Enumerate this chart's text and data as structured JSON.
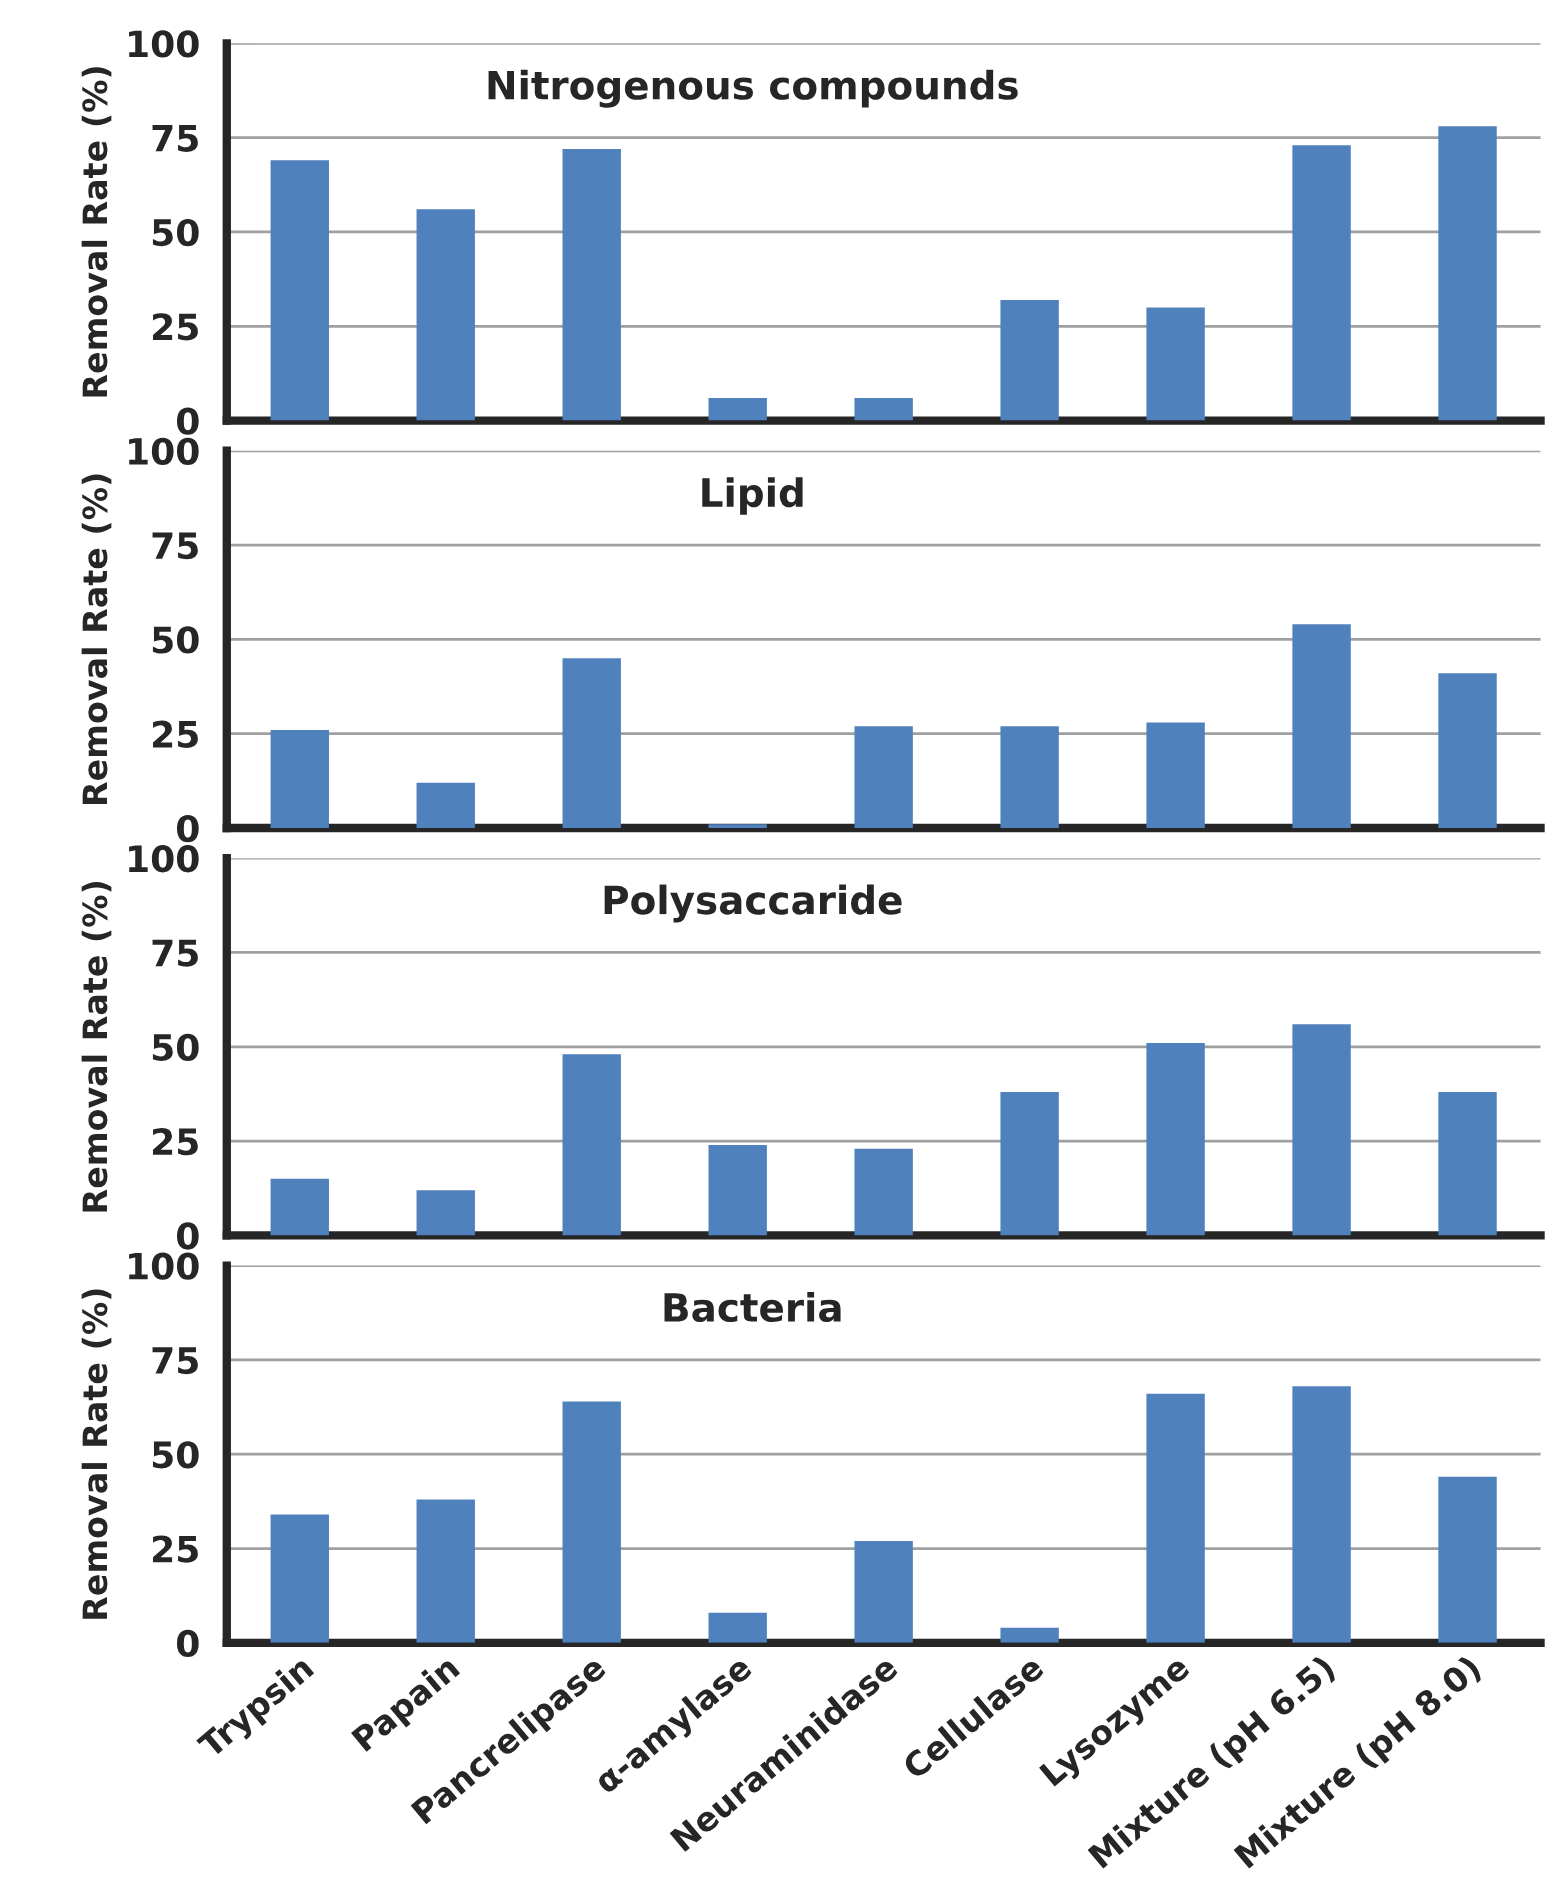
{
  "chart_data": [
    {
      "type": "bar",
      "title": "Nitrogenous compounds",
      "ylabel": "Removal Rate (%)",
      "categories": [
        null,
        null,
        null,
        null,
        null,
        null,
        null,
        null,
        null
      ],
      "values": [
        69,
        56,
        72,
        6,
        6,
        32,
        30,
        73,
        78
      ],
      "color": "#4f81bd",
      "ylim": [
        0,
        100
      ],
      "yticks": [
        0,
        25,
        50,
        75,
        100
      ],
      "grid": "y",
      "tick_labels": "y"
    },
    {
      "type": "bar",
      "title": "Lipid",
      "ylabel": "Removal Rate (%)",
      "categories": [
        null,
        null,
        null,
        null,
        null,
        null,
        null,
        null,
        null
      ],
      "values": [
        26,
        12,
        45,
        1,
        27,
        27,
        28,
        54,
        41
      ],
      "color": "#4f81bd",
      "ylim": [
        0,
        100
      ],
      "yticks": [
        0,
        25,
        50,
        75,
        100
      ],
      "grid": "y",
      "tick_labels": "y"
    },
    {
      "type": "bar",
      "title": "Polysaccaride",
      "ylabel": "Removal Rate (%)",
      "categories": [
        null,
        null,
        null,
        null,
        null,
        null,
        null,
        null,
        null
      ],
      "values": [
        15,
        12,
        48,
        24,
        23,
        38,
        51,
        56,
        38
      ],
      "color": "#4f81bd",
      "ylim": [
        0,
        100
      ],
      "yticks": [
        0,
        25,
        50,
        75,
        100
      ],
      "grid": "y",
      "tick_labels": "y"
    },
    {
      "type": "bar",
      "title": "Bacteria",
      "ylabel": "Removal Rate (%)",
      "categories": [
        "Trypsin",
        "Papain",
        "Pancrelipase",
        "α-amylase",
        "Neuraminidase",
        "Cellulase",
        "Lysozyme",
        "Mixture (pH 6.5)",
        "Mixture (pH 8.0)"
      ],
      "values": [
        34,
        38,
        64,
        8,
        27,
        4,
        66,
        68,
        44
      ],
      "color": "#4f81bd",
      "ylim": [
        0,
        100
      ],
      "yticks": [
        0,
        25,
        50,
        75,
        100
      ],
      "grid": "y"
    }
  ]
}
